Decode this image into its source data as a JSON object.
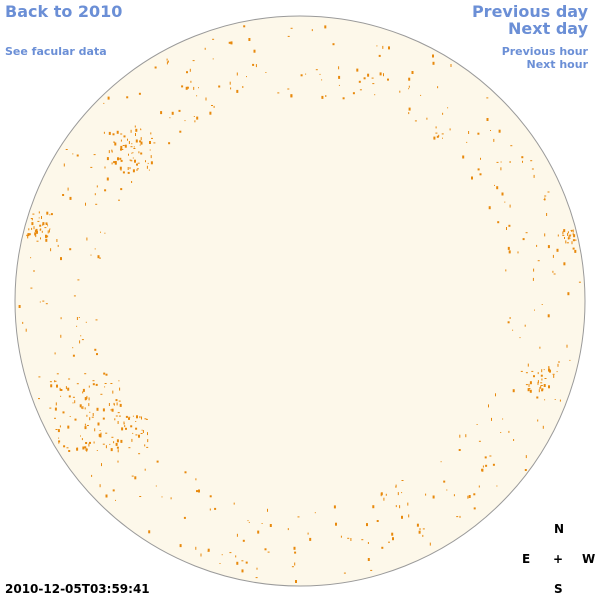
{
  "nav": {
    "back_year": "Back to 2010",
    "facular": "See facular data",
    "prev_day": "Previous day",
    "next_day": "Next day",
    "prev_hour": "Previous hour",
    "next_hour": "Next hour"
  },
  "compass": {
    "north": "N",
    "south": "S",
    "east": "E",
    "west": "W",
    "center": "+"
  },
  "timestamp": "2010-12-05T03:59:41",
  "colors": {
    "disk_fill": "#fdf8ea",
    "disk_stroke": "#9a9a9a",
    "facula": "#e8890c",
    "link": "#6b8fd6"
  }
}
